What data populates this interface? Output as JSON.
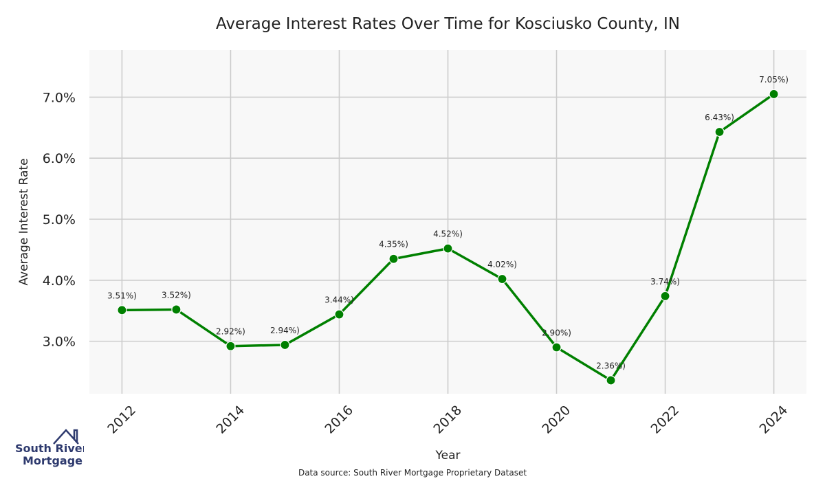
{
  "chart_data": {
    "type": "line",
    "title": "Average Interest Rates Over Time for Kosciusko County, IN",
    "xlabel": "Year",
    "ylabel": "Average Interest Rate",
    "x": [
      2012,
      2013,
      2014,
      2015,
      2016,
      2017,
      2018,
      2019,
      2020,
      2021,
      2022,
      2023,
      2024
    ],
    "series": [
      {
        "values": [
          3.51,
          3.52,
          2.92,
          2.94,
          3.44,
          4.35,
          4.52,
          4.02,
          2.9,
          2.36,
          3.74,
          6.43,
          7.05
        ],
        "data_labels": [
          "3.51%)",
          "3.52%)",
          "2.92%)",
          "2.94%)",
          "3.44%)",
          "4.35%)",
          "4.52%)",
          "4.02%)",
          "2.90%)",
          "2.36%)",
          "3.74%)",
          "6.43%)",
          "7.05%)"
        ],
        "color": "#008000"
      }
    ],
    "x_ticks": [
      "2012",
      "2014",
      "2016",
      "2018",
      "2020",
      "2022",
      "2024"
    ],
    "y_ticks": [
      3.0,
      4.0,
      5.0,
      6.0,
      7.0
    ],
    "y_tick_labels": [
      "3.0%",
      "4.0%",
      "5.0%",
      "6.0%",
      "7.0%"
    ],
    "xlim": [
      2011.4,
      2024.6
    ],
    "ylim": [
      2.14,
      7.77
    ],
    "grid": true,
    "legend": "none",
    "background_color": "#f8f8f8",
    "grid_color": "#cccccc"
  },
  "source_note": "Data source: South River Mortgage Proprietary Dataset",
  "logo": {
    "line1": "South River",
    "line2": "Mortgage",
    "color": "#2e3a6e",
    "icon": "house-icon"
  }
}
